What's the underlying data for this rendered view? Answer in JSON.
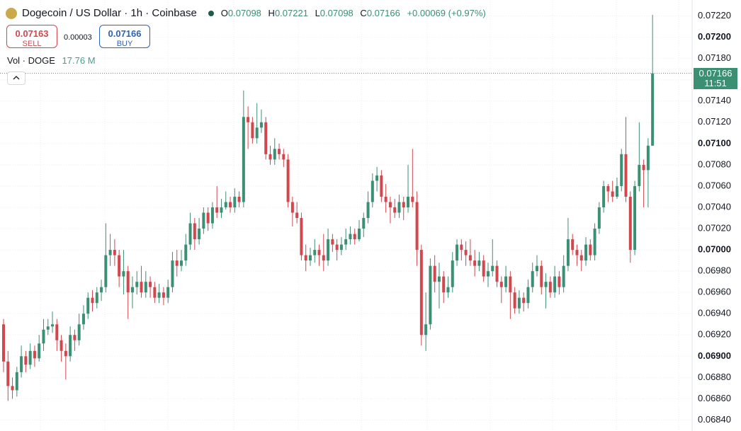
{
  "header": {
    "title": "Dogecoin / US Dollar · 1h · Coinbase",
    "o_label": "O",
    "h_label": "H",
    "l_label": "L",
    "c_label": "C",
    "change": "+0.00069 (+0.97%)"
  },
  "trade": {
    "sell_price": "0.07163",
    "sell_label": "SELL",
    "spread": "0.00003",
    "buy_price": "0.07166",
    "buy_label": "BUY"
  },
  "volume": {
    "label": "Vol · DOGE",
    "value": "17.76 M"
  },
  "countdown": "11:51",
  "chart_data": {
    "type": "candlestick",
    "up_color": "#3b8f73",
    "down_color": "#d1474d",
    "grid": true,
    "ylim": [
      0.06835,
      0.07235
    ],
    "yticks": [
      {
        "value": 0.0684,
        "label": "0.06840"
      },
      {
        "value": 0.0686,
        "label": "0.06860"
      },
      {
        "value": 0.0688,
        "label": "0.06880"
      },
      {
        "value": 0.069,
        "label": "0.06900"
      },
      {
        "value": 0.0692,
        "label": "0.06920"
      },
      {
        "value": 0.0694,
        "label": "0.06940"
      },
      {
        "value": 0.0696,
        "label": "0.06960"
      },
      {
        "value": 0.0698,
        "label": "0.06980"
      },
      {
        "value": 0.07,
        "label": "0.07000"
      },
      {
        "value": 0.0702,
        "label": "0.07020"
      },
      {
        "value": 0.0704,
        "label": "0.07040"
      },
      {
        "value": 0.0706,
        "label": "0.07060"
      },
      {
        "value": 0.0708,
        "label": "0.07080"
      },
      {
        "value": 0.071,
        "label": "0.07100"
      },
      {
        "value": 0.0712,
        "label": "0.07120"
      },
      {
        "value": 0.0714,
        "label": "0.07140"
      },
      {
        "value": 0.0716,
        "label": "0.07160"
      },
      {
        "value": 0.0718,
        "label": "0.07180"
      },
      {
        "value": 0.072,
        "label": "0.07200"
      },
      {
        "value": 0.0722,
        "label": "0.07220"
      }
    ],
    "open": [
      0.0693,
      0.06895,
      0.06872,
      0.06868,
      0.06885,
      0.069,
      0.06892,
      0.06905,
      0.06898,
      0.06912,
      0.06925,
      0.06928,
      0.0693,
      0.06915,
      0.06905,
      0.069,
      0.0692,
      0.06915,
      0.0693,
      0.0694,
      0.06955,
      0.0695,
      0.0696,
      0.06965,
      0.06995,
      0.07,
      0.06995,
      0.06975,
      0.0698,
      0.0696,
      0.06965,
      0.0697,
      0.0696,
      0.0697,
      0.06965,
      0.06955,
      0.0696,
      0.06955,
      0.06965,
      0.0699,
      0.06985,
      0.0699,
      0.07005,
      0.07025,
      0.0701,
      0.0702,
      0.07035,
      0.07025,
      0.0704,
      0.07035,
      0.0704,
      0.07045,
      0.0704,
      0.0705,
      0.07045,
      0.07125,
      0.0712,
      0.07105,
      0.07115,
      0.0712,
      0.0709,
      0.07085,
      0.07095,
      0.0709,
      0.07085,
      0.07045,
      0.07035,
      0.0703,
      0.06995,
      0.0699,
      0.06995,
      0.07,
      0.06995,
      0.0699,
      0.0701,
      0.07005,
      0.07,
      0.07005,
      0.0701,
      0.07015,
      0.0701,
      0.0702,
      0.0703,
      0.07045,
      0.07065,
      0.0707,
      0.0705,
      0.07045,
      0.0704,
      0.07035,
      0.07045,
      0.0704,
      0.0705,
      0.07045,
      0.07,
      0.0692,
      0.0693,
      0.06985,
      0.0697,
      0.06975,
      0.0696,
      0.06965,
      0.0699,
      0.07005,
      0.07,
      0.06995,
      0.0699,
      0.06985,
      0.0699,
      0.06975,
      0.0698,
      0.06985,
      0.0697,
      0.06965,
      0.06975,
      0.0696,
      0.06945,
      0.06955,
      0.0695,
      0.06965,
      0.0698,
      0.06985,
      0.06965,
      0.0697,
      0.0696,
      0.06975,
      0.06965,
      0.06985,
      0.0701,
      0.07,
      0.06995,
      0.0699,
      0.07005,
      0.06995,
      0.0702,
      0.0704,
      0.0706,
      0.07055,
      0.0705,
      0.0706,
      0.0709,
      0.0705,
      0.07,
      0.0706,
      0.0708,
      0.07075,
      0.07098
    ],
    "high": [
      0.06935,
      0.06905,
      0.0688,
      0.0689,
      0.0691,
      0.06905,
      0.06912,
      0.0691,
      0.0692,
      0.06935,
      0.06935,
      0.06942,
      0.06935,
      0.0692,
      0.06912,
      0.06928,
      0.06925,
      0.0694,
      0.06948,
      0.0696,
      0.06962,
      0.06965,
      0.06972,
      0.07025,
      0.07015,
      0.0701,
      0.07,
      0.07,
      0.06985,
      0.06975,
      0.0698,
      0.06985,
      0.0698,
      0.06975,
      0.0697,
      0.06968,
      0.06965,
      0.06972,
      0.06998,
      0.07,
      0.07,
      0.07015,
      0.07035,
      0.0703,
      0.0703,
      0.0704,
      0.0704,
      0.07045,
      0.0706,
      0.07048,
      0.07055,
      0.0705,
      0.07058,
      0.07055,
      0.0715,
      0.07135,
      0.07125,
      0.07138,
      0.07132,
      0.07125,
      0.07098,
      0.07105,
      0.071,
      0.07095,
      0.0709,
      0.0705,
      0.07045,
      0.07035,
      0.07005,
      0.07002,
      0.0701,
      0.07005,
      0.07015,
      0.0702,
      0.07015,
      0.0701,
      0.07012,
      0.0702,
      0.07022,
      0.0702,
      0.07028,
      0.07035,
      0.07055,
      0.07072,
      0.07078,
      0.07075,
      0.07062,
      0.0705,
      0.07048,
      0.07052,
      0.0705,
      0.0708,
      0.07095,
      0.07055,
      0.07005,
      0.0696,
      0.06992,
      0.06995,
      0.06988,
      0.0698,
      0.06975,
      0.06998,
      0.0701,
      0.0701,
      0.07008,
      0.0701,
      0.07,
      0.06998,
      0.06995,
      0.06988,
      0.0701,
      0.0699,
      0.06975,
      0.06985,
      0.0698,
      0.06965,
      0.06962,
      0.0696,
      0.06972,
      0.06988,
      0.06995,
      0.0699,
      0.06978,
      0.06975,
      0.06985,
      0.0698,
      0.06995,
      0.0703,
      0.07015,
      0.07005,
      0.07,
      0.07012,
      0.0701,
      0.07025,
      0.07045,
      0.07065,
      0.07062,
      0.07065,
      0.07068,
      0.07095,
      0.07125,
      0.07055,
      0.07065,
      0.0712,
      0.07085,
      0.07105,
      0.07221
    ],
    "low": [
      0.06885,
      0.06858,
      0.0686,
      0.06862,
      0.0688,
      0.06885,
      0.06888,
      0.0689,
      0.06895,
      0.06905,
      0.0692,
      0.06922,
      0.06905,
      0.06895,
      0.06878,
      0.06895,
      0.06905,
      0.0691,
      0.06925,
      0.06935,
      0.06942,
      0.06945,
      0.06952,
      0.0696,
      0.06985,
      0.06985,
      0.06965,
      0.06958,
      0.06935,
      0.06945,
      0.06958,
      0.06955,
      0.06955,
      0.06955,
      0.0695,
      0.0695,
      0.06948,
      0.0695,
      0.0696,
      0.06975,
      0.0698,
      0.06985,
      0.07,
      0.07,
      0.07005,
      0.07015,
      0.07018,
      0.0702,
      0.0703,
      0.0703,
      0.07038,
      0.07035,
      0.07035,
      0.0704,
      0.0704,
      0.07095,
      0.071,
      0.071,
      0.0711,
      0.07085,
      0.0708,
      0.0708,
      0.07085,
      0.07078,
      0.0704,
      0.07022,
      0.07025,
      0.0699,
      0.0698,
      0.06985,
      0.06988,
      0.06985,
      0.0698,
      0.06985,
      0.06998,
      0.0699,
      0.06995,
      0.07,
      0.07005,
      0.07005,
      0.07008,
      0.07012,
      0.07025,
      0.0704,
      0.07055,
      0.07045,
      0.07035,
      0.07025,
      0.0703,
      0.0703,
      0.07028,
      0.07035,
      0.0704,
      0.06985,
      0.0691,
      0.06905,
      0.06925,
      0.0696,
      0.06945,
      0.0695,
      0.06955,
      0.0696,
      0.06985,
      0.0699,
      0.06985,
      0.06985,
      0.06975,
      0.0698,
      0.0697,
      0.06965,
      0.06975,
      0.06965,
      0.0695,
      0.0696,
      0.06935,
      0.0694,
      0.0694,
      0.06942,
      0.06945,
      0.0696,
      0.06975,
      0.06958,
      0.06945,
      0.06955,
      0.06955,
      0.06958,
      0.0696,
      0.0698,
      0.06995,
      0.06985,
      0.0698,
      0.06985,
      0.0699,
      0.0699,
      0.07015,
      0.07035,
      0.07045,
      0.07045,
      0.07048,
      0.07055,
      0.07045,
      0.06988,
      0.06995,
      0.07055,
      0.0704,
      0.0704,
      0.07098
    ],
    "close": [
      0.06895,
      0.06872,
      0.06868,
      0.06885,
      0.069,
      0.06892,
      0.06905,
      0.06898,
      0.06912,
      0.06925,
      0.06928,
      0.0693,
      0.06915,
      0.06905,
      0.069,
      0.0692,
      0.06915,
      0.0693,
      0.0694,
      0.06955,
      0.0695,
      0.0696,
      0.06965,
      0.06995,
      0.07,
      0.06995,
      0.06975,
      0.0698,
      0.0696,
      0.06965,
      0.0697,
      0.0696,
      0.0697,
      0.06965,
      0.06955,
      0.0696,
      0.06955,
      0.06965,
      0.0699,
      0.06985,
      0.0699,
      0.07005,
      0.07025,
      0.0701,
      0.0702,
      0.07035,
      0.07025,
      0.0704,
      0.07035,
      0.0704,
      0.07045,
      0.0704,
      0.0705,
      0.07045,
      0.07125,
      0.0712,
      0.07105,
      0.07115,
      0.0712,
      0.0709,
      0.07085,
      0.07095,
      0.0709,
      0.07085,
      0.07045,
      0.07035,
      0.0703,
      0.06995,
      0.0699,
      0.06995,
      0.07,
      0.06995,
      0.0699,
      0.0701,
      0.07005,
      0.07,
      0.07005,
      0.0701,
      0.07015,
      0.0701,
      0.0702,
      0.0703,
      0.07045,
      0.07065,
      0.0707,
      0.0705,
      0.07045,
      0.0704,
      0.07035,
      0.07045,
      0.0704,
      0.0705,
      0.07045,
      0.07,
      0.0692,
      0.0693,
      0.06985,
      0.0697,
      0.06975,
      0.0696,
      0.06965,
      0.0699,
      0.07005,
      0.07,
      0.06995,
      0.0699,
      0.06985,
      0.0699,
      0.06975,
      0.0698,
      0.06985,
      0.0697,
      0.06965,
      0.06975,
      0.0696,
      0.06945,
      0.06955,
      0.0695,
      0.06965,
      0.0698,
      0.06985,
      0.06965,
      0.0697,
      0.0696,
      0.06975,
      0.06965,
      0.06985,
      0.0701,
      0.07,
      0.06995,
      0.0699,
      0.07005,
      0.06995,
      0.0702,
      0.0704,
      0.0706,
      0.07055,
      0.0705,
      0.0706,
      0.0709,
      0.0705,
      0.07,
      0.0706,
      0.0708,
      0.07075,
      0.07098,
      0.07166
    ]
  }
}
